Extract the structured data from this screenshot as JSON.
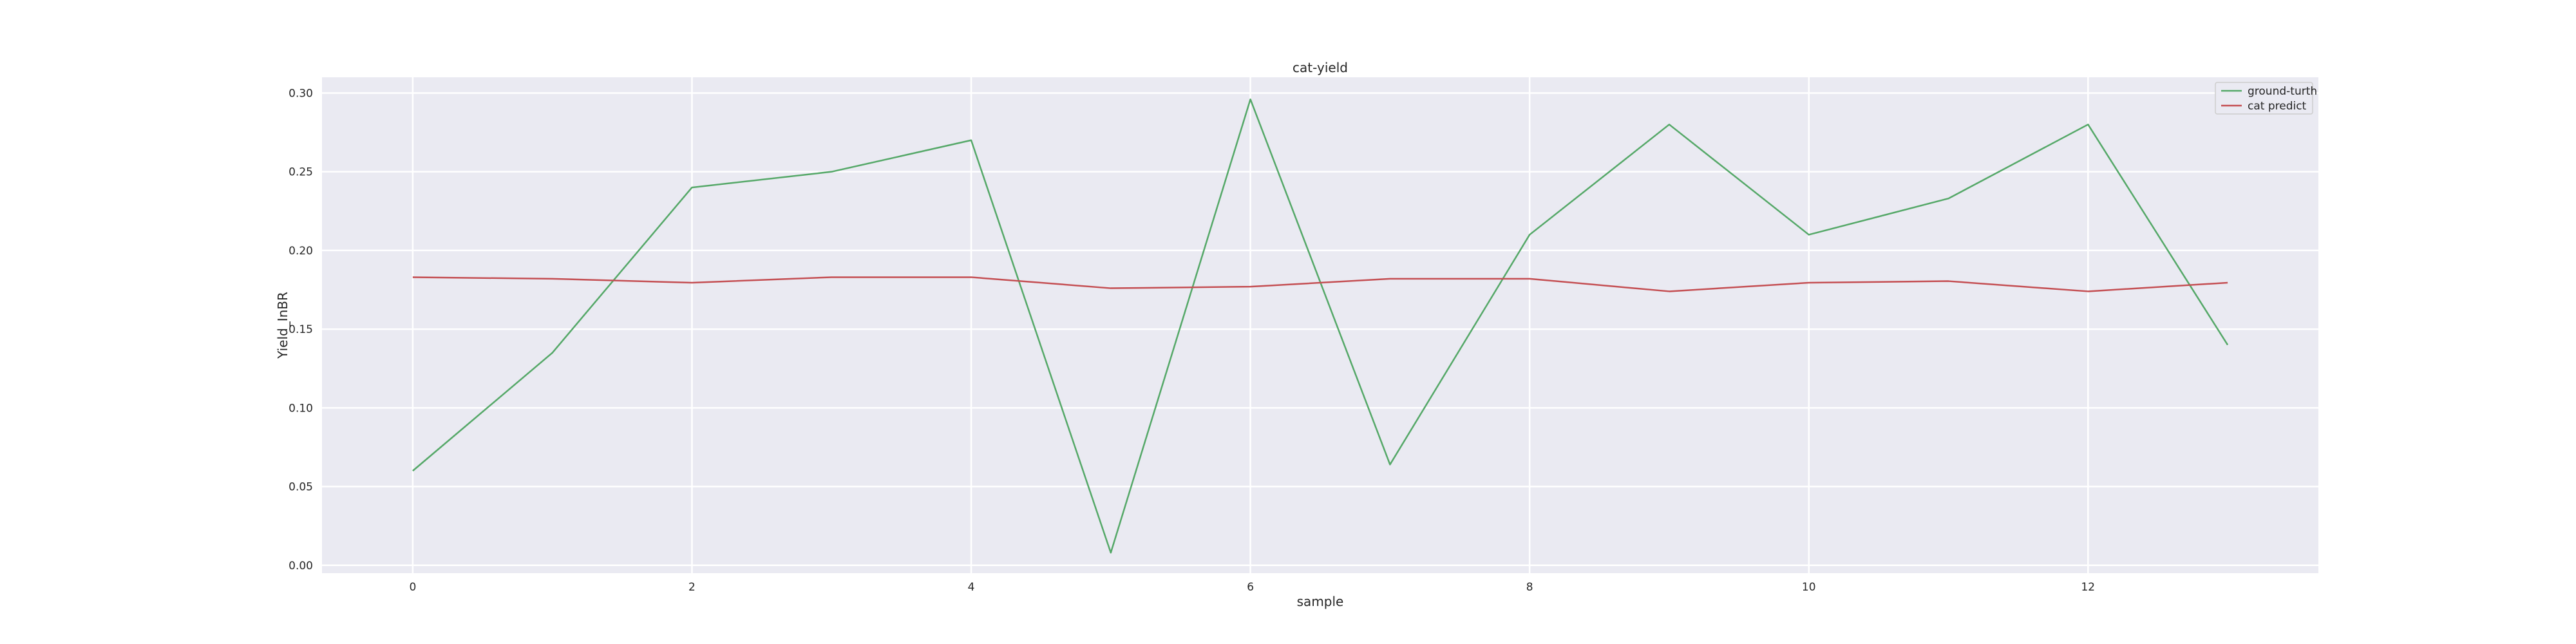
{
  "chart_data": {
    "type": "line",
    "title": "cat-yield",
    "xlabel": "sample",
    "ylabel": "Yield_InBR",
    "x": [
      0,
      1,
      2,
      3,
      4,
      5,
      6,
      7,
      8,
      9,
      10,
      11,
      12,
      13
    ],
    "xlim": [
      -0.65,
      13.65
    ],
    "ylim": [
      -0.005,
      0.31
    ],
    "xticks": [
      0,
      2,
      4,
      6,
      8,
      10,
      12
    ],
    "xtick_labels": [
      "0",
      "2",
      "4",
      "6",
      "8",
      "10",
      "12"
    ],
    "yticks": [
      0.0,
      0.05,
      0.1,
      0.15,
      0.2,
      0.25,
      0.3
    ],
    "ytick_labels": [
      "0.00",
      "0.05",
      "0.10",
      "0.15",
      "0.20",
      "0.25",
      "0.30"
    ],
    "grid": true,
    "legend_position": "top-right",
    "series": [
      {
        "name": "ground-turth",
        "color": "#55a868",
        "values": [
          0.06,
          0.135,
          0.24,
          0.25,
          0.27,
          0.008,
          0.296,
          0.064,
          0.21,
          0.28,
          0.21,
          0.233,
          0.28,
          0.14
        ]
      },
      {
        "name": "cat predict",
        "color": "#c44e52",
        "values": [
          0.183,
          0.182,
          0.1795,
          0.183,
          0.183,
          0.176,
          0.177,
          0.182,
          0.182,
          0.174,
          0.1795,
          0.1805,
          0.174,
          0.1795
        ]
      }
    ]
  }
}
